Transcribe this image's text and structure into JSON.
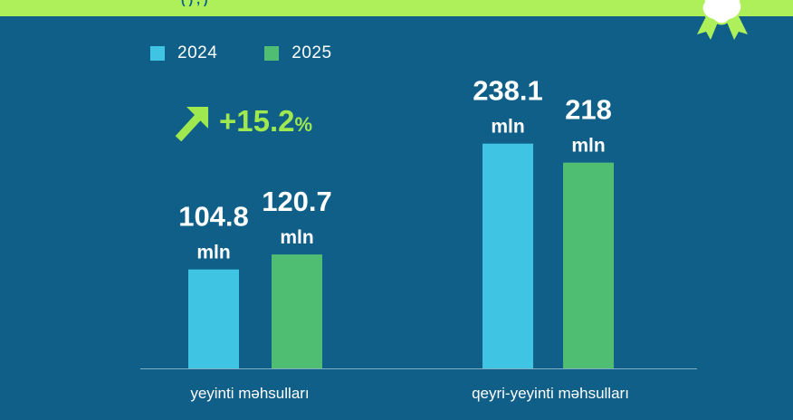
{
  "header": {
    "band_text": "(                )                                                             ,             )"
  },
  "badge": {
    "icon": "ribbon-badge-icon",
    "color": "#aef05a"
  },
  "legend": [
    {
      "label": "2024",
      "color": "#40c4e4"
    },
    {
      "label": "2025",
      "color": "#4fbd72"
    }
  ],
  "growth": {
    "icon": "arrow-up-right-icon",
    "value": "+15.2",
    "unit": "%",
    "color": "#9fe84f"
  },
  "chart_data": {
    "type": "bar",
    "categories": [
      "yeyinti məhsulları",
      "qeyri-yeyinti məhsulları"
    ],
    "series": [
      {
        "name": "2024",
        "values": [
          104.8,
          238.1
        ],
        "labels": [
          "104.8",
          "238.1"
        ],
        "color": "#40c4e4"
      },
      {
        "name": "2025",
        "values": [
          120.7,
          218
        ],
        "labels": [
          "120.7",
          "218"
        ],
        "color": "#4fbd72"
      }
    ],
    "unit_label": "mln",
    "title": "",
    "xlabel": "",
    "ylabel": "",
    "ylim": [
      0,
      256
    ],
    "grid": false,
    "legend_position": "top-left"
  }
}
